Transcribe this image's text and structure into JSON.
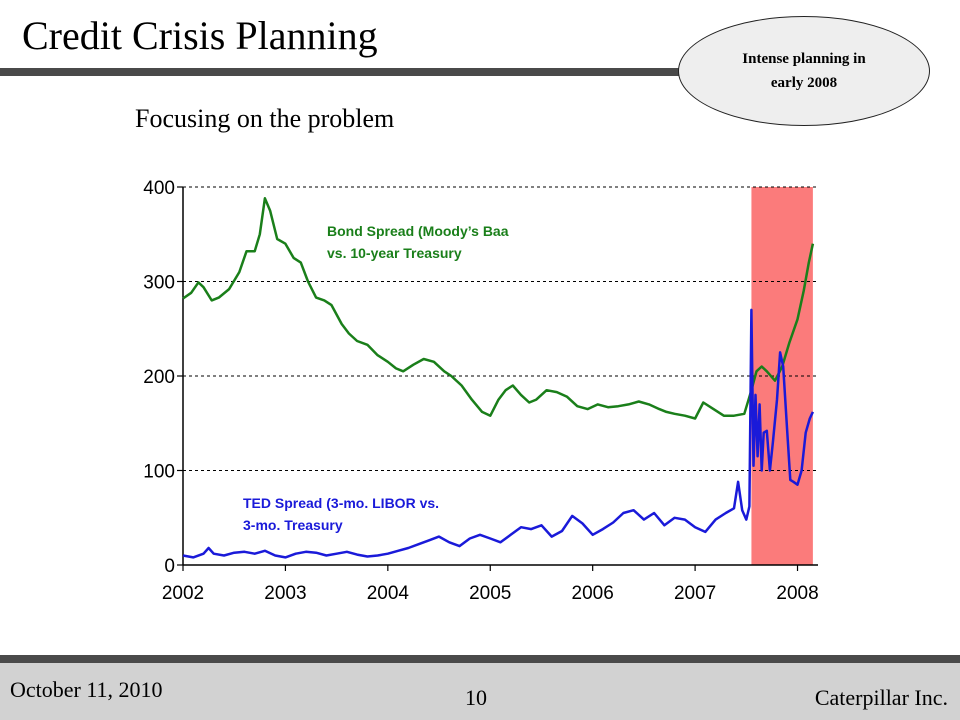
{
  "slide": {
    "title": "Credit Crisis Planning",
    "subtitle": "Focusing on the problem",
    "callout_line1": "Intense planning in",
    "callout_line2": "early 2008"
  },
  "footer": {
    "date": "October 11, 2010",
    "page": "10",
    "company": "Caterpillar Inc."
  },
  "chart_data": {
    "type": "line",
    "title": "",
    "xlabel": "",
    "ylabel": "",
    "xlim": [
      2002.0,
      2008.2
    ],
    "ylim": [
      0,
      400
    ],
    "yticks": [
      0,
      100,
      200,
      300,
      400
    ],
    "ytick_labels": [
      "0",
      "100",
      "200",
      "300",
      "400"
    ],
    "xticks": [
      2002,
      2003,
      2004,
      2005,
      2006,
      2007,
      2008
    ],
    "xtick_labels": [
      "2002",
      "2003",
      "2004",
      "2005",
      "2006",
      "2007",
      "2008"
    ],
    "grid": "horizontal-dashed",
    "highlight_region": {
      "x_start": 2007.55,
      "x_end": 2008.15,
      "color": "#fb7b7b"
    },
    "colors": {
      "bond": "#1a7f1a",
      "ted": "#1a1ad9"
    },
    "annotations": [
      {
        "id": "bond",
        "line1": "Bond Spread (Moody’s Baa",
        "line2": "vs. 10-year Treasury"
      },
      {
        "id": "ted",
        "line1": "TED Spread (3-mo. LIBOR vs.",
        "line2": "3-mo. Treasury"
      }
    ],
    "series": [
      {
        "id": "bond",
        "x": [
          2002.0,
          2002.08,
          2002.15,
          2002.2,
          2002.28,
          2002.35,
          2002.45,
          2002.55,
          2002.62,
          2002.7,
          2002.75,
          2002.8,
          2002.85,
          2002.92,
          2003.0,
          2003.08,
          2003.15,
          2003.22,
          2003.3,
          2003.38,
          2003.45,
          2003.55,
          2003.62,
          2003.7,
          2003.8,
          2003.9,
          2004.0,
          2004.08,
          2004.15,
          2004.25,
          2004.35,
          2004.45,
          2004.55,
          2004.62,
          2004.72,
          2004.82,
          2004.92,
          2005.0,
          2005.08,
          2005.15,
          2005.22,
          2005.3,
          2005.38,
          2005.45,
          2005.55,
          2005.65,
          2005.75,
          2005.85,
          2005.95,
          2006.05,
          2006.15,
          2006.25,
          2006.35,
          2006.45,
          2006.55,
          2006.65,
          2006.72,
          2006.8,
          2006.9,
          2007.0,
          2007.08,
          2007.18,
          2007.28,
          2007.38,
          2007.48,
          2007.55,
          2007.6,
          2007.65,
          2007.7,
          2007.78,
          2007.85,
          2007.92,
          2008.0,
          2008.06,
          2008.11,
          2008.15
        ],
        "y": [
          282,
          288,
          299,
          294,
          280,
          283,
          292,
          310,
          332,
          332,
          350,
          388,
          375,
          345,
          340,
          325,
          320,
          300,
          283,
          280,
          275,
          255,
          245,
          237,
          233,
          222,
          215,
          208,
          205,
          212,
          218,
          215,
          205,
          200,
          190,
          175,
          162,
          158,
          175,
          185,
          190,
          180,
          172,
          175,
          185,
          183,
          178,
          168,
          165,
          170,
          167,
          168,
          170,
          173,
          170,
          165,
          162,
          160,
          158,
          155,
          172,
          165,
          158,
          158,
          160,
          185,
          205,
          210,
          205,
          195,
          210,
          235,
          260,
          290,
          320,
          340
        ]
      },
      {
        "id": "ted",
        "x": [
          2002.0,
          2002.1,
          2002.2,
          2002.25,
          2002.3,
          2002.4,
          2002.5,
          2002.6,
          2002.7,
          2002.8,
          2002.9,
          2003.0,
          2003.1,
          2003.2,
          2003.3,
          2003.4,
          2003.5,
          2003.6,
          2003.7,
          2003.8,
          2003.9,
          2004.0,
          2004.1,
          2004.2,
          2004.3,
          2004.4,
          2004.5,
          2004.6,
          2004.7,
          2004.8,
          2004.9,
          2005.0,
          2005.1,
          2005.2,
          2005.3,
          2005.4,
          2005.5,
          2005.6,
          2005.7,
          2005.8,
          2005.9,
          2006.0,
          2006.1,
          2006.2,
          2006.3,
          2006.4,
          2006.5,
          2006.6,
          2006.7,
          2006.8,
          2006.9,
          2007.0,
          2007.1,
          2007.2,
          2007.3,
          2007.38,
          2007.42,
          2007.46,
          2007.5,
          2007.53,
          2007.55,
          2007.57,
          2007.59,
          2007.61,
          2007.63,
          2007.65,
          2007.67,
          2007.7,
          2007.73,
          2007.76,
          2007.8,
          2007.83,
          2007.86,
          2007.9,
          2007.93,
          2007.96,
          2008.0,
          2008.04,
          2008.08,
          2008.12,
          2008.15
        ],
        "y": [
          10,
          8,
          12,
          18,
          12,
          10,
          13,
          14,
          12,
          15,
          10,
          8,
          12,
          14,
          13,
          10,
          12,
          14,
          11,
          9,
          10,
          12,
          15,
          18,
          22,
          26,
          30,
          24,
          20,
          28,
          32,
          28,
          24,
          32,
          40,
          38,
          42,
          30,
          36,
          52,
          44,
          32,
          38,
          45,
          55,
          58,
          48,
          55,
          42,
          50,
          48,
          40,
          35,
          48,
          55,
          60,
          88,
          58,
          48,
          62,
          270,
          105,
          180,
          115,
          170,
          100,
          140,
          142,
          100,
          130,
          175,
          225,
          210,
          140,
          90,
          88,
          85,
          100,
          140,
          155,
          162
        ]
      }
    ]
  }
}
